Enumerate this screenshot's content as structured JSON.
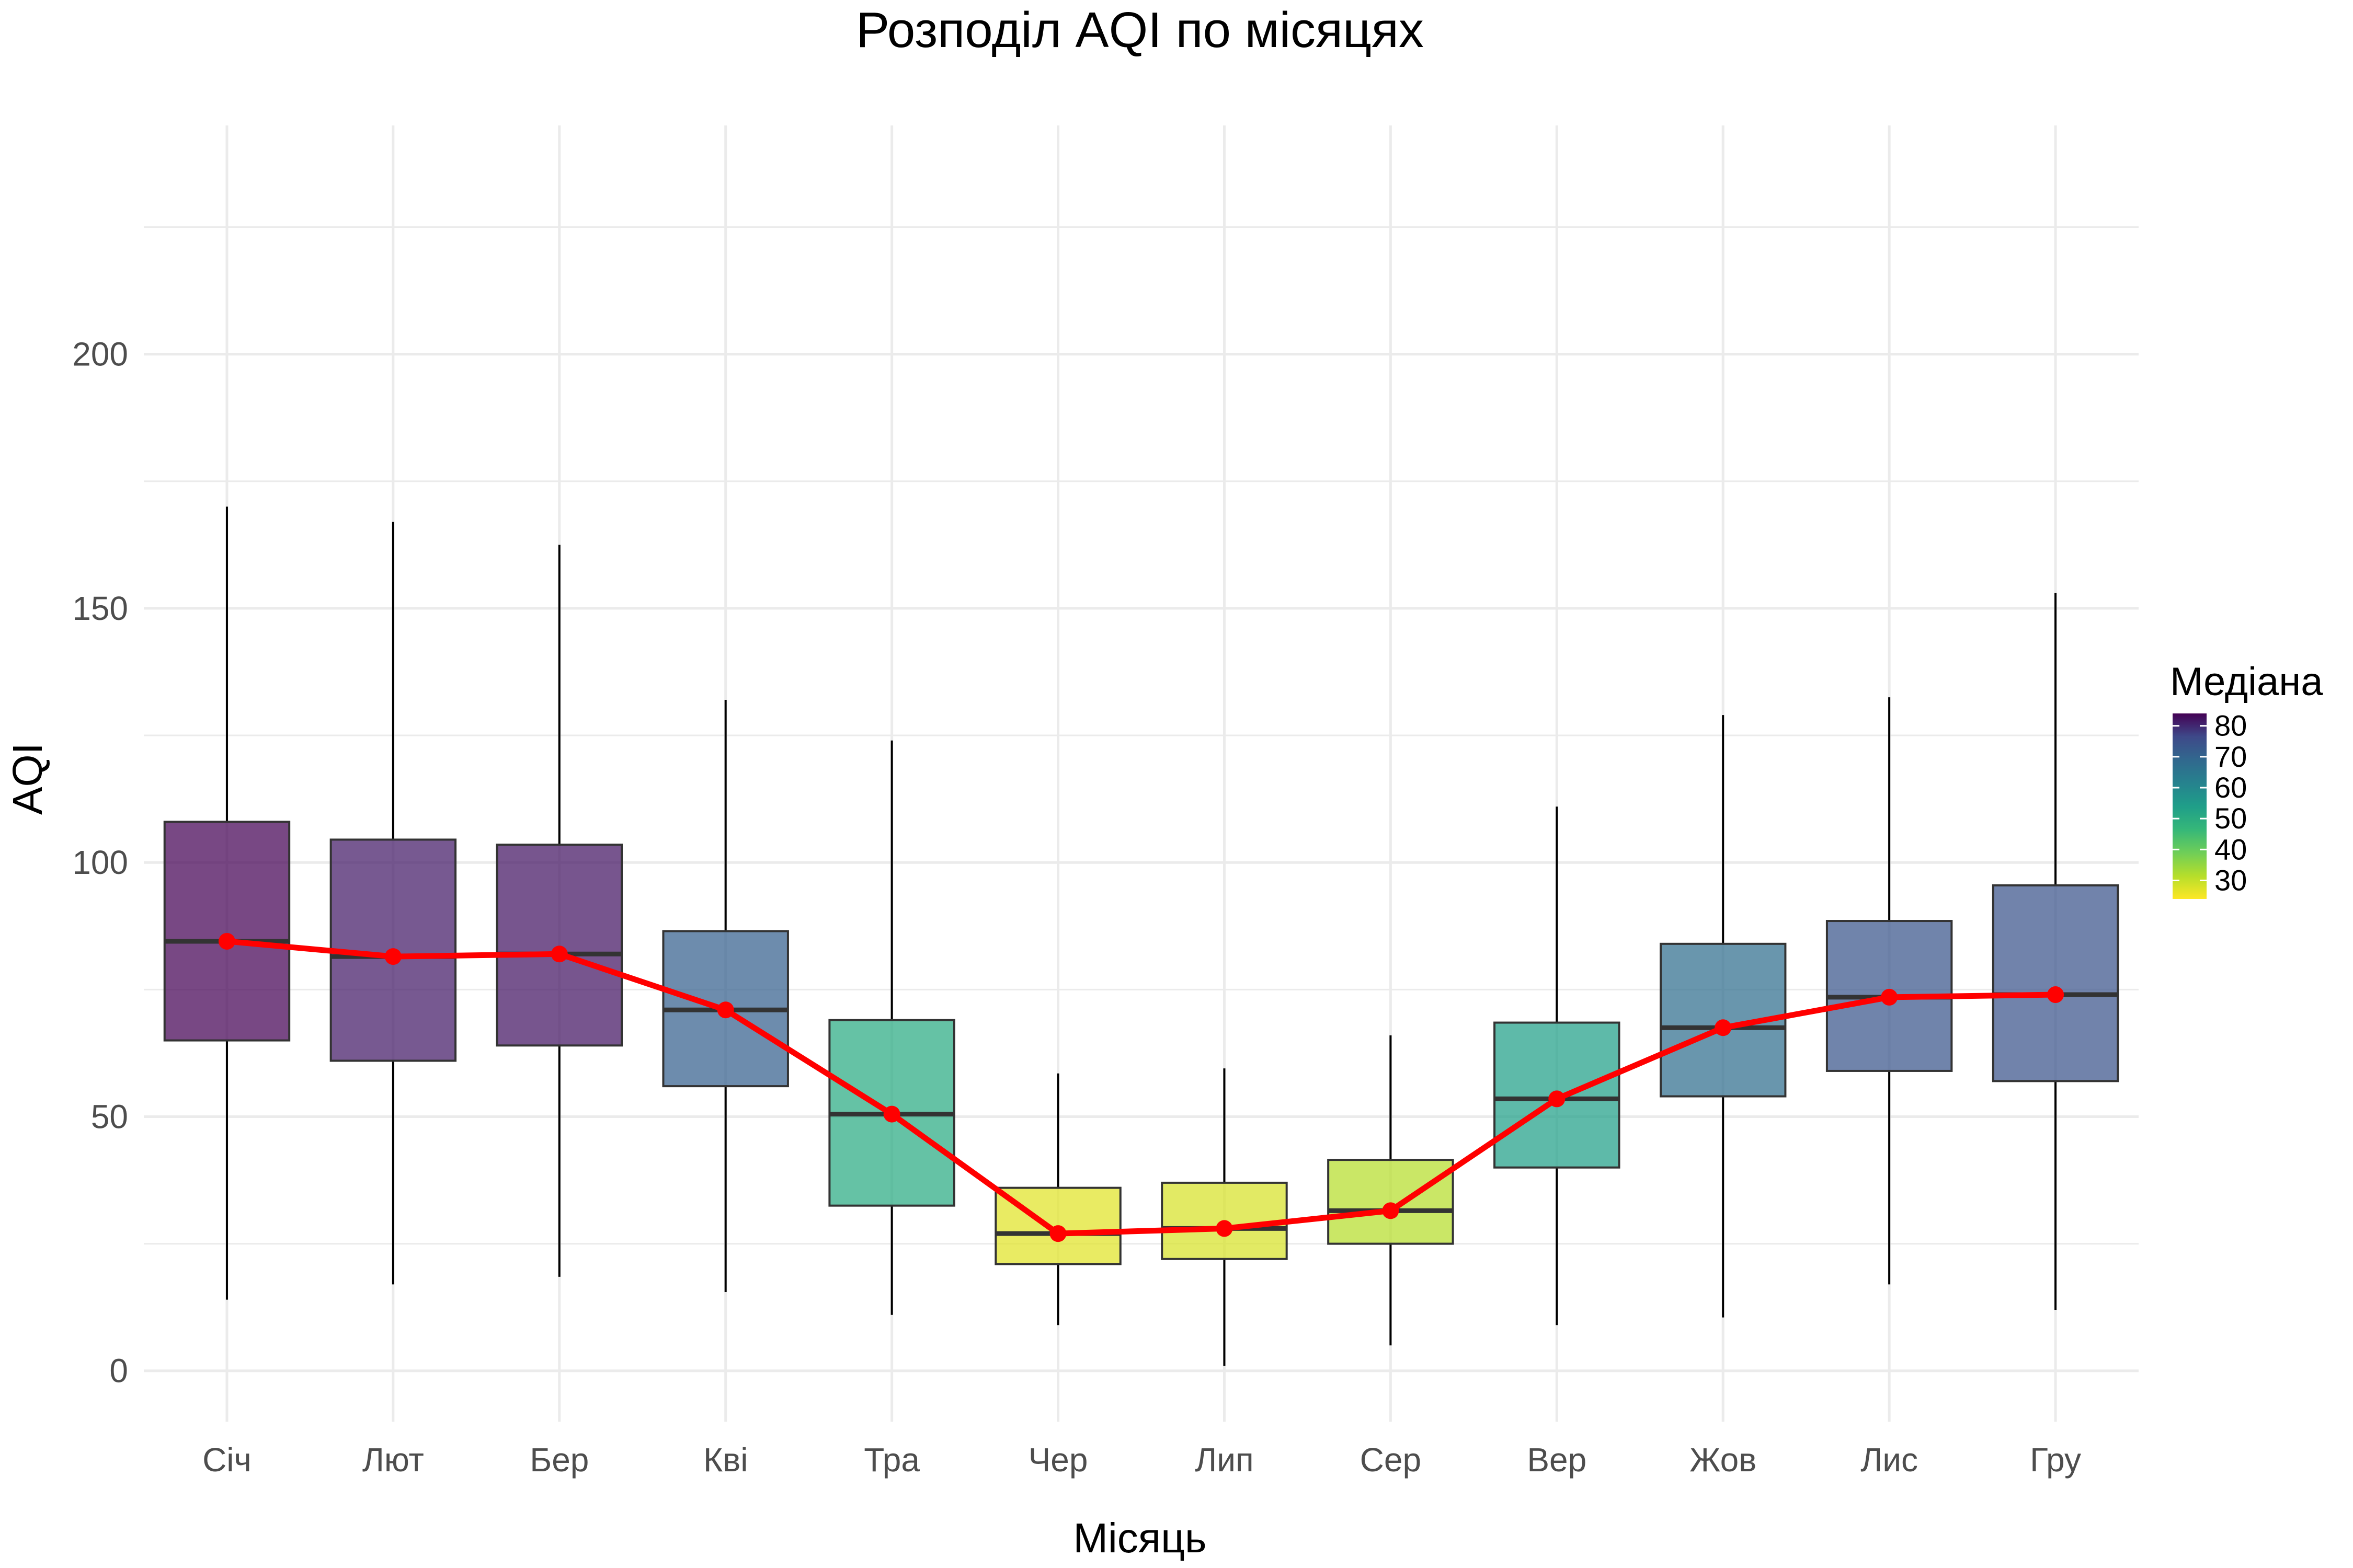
{
  "chart_data": {
    "type": "box",
    "title": "Розподіл AQI по місяцях",
    "xlabel": "Місяць",
    "ylabel": "AQI",
    "categories": [
      "Січ",
      "Лют",
      "Бер",
      "Кві",
      "Тра",
      "Чер",
      "Лип",
      "Сер",
      "Вер",
      "Жов",
      "Лис",
      "Гру"
    ],
    "ylim": [
      -10,
      245
    ],
    "yticks": [
      0,
      50,
      100,
      150,
      200
    ],
    "grid": true,
    "boxes": [
      {
        "whisker_low": 14,
        "q1": 65,
        "median": 84.5,
        "q3": 108,
        "whisker_high": 170
      },
      {
        "whisker_low": 17,
        "q1": 61,
        "median": 81.5,
        "q3": 104.5,
        "whisker_high": 167
      },
      {
        "whisker_low": 18.5,
        "q1": 64,
        "median": 82,
        "q3": 103.5,
        "whisker_high": 162.5
      },
      {
        "whisker_low": 15.5,
        "q1": 56,
        "median": 71,
        "q3": 86.5,
        "whisker_high": 132
      },
      {
        "whisker_low": 11,
        "q1": 32.5,
        "median": 50.5,
        "q3": 69,
        "whisker_high": 124
      },
      {
        "whisker_low": 9,
        "q1": 21,
        "median": 27,
        "q3": 36,
        "whisker_high": 58.5
      },
      {
        "whisker_low": 1,
        "q1": 22,
        "median": 28,
        "q3": 37,
        "whisker_high": 59.5
      },
      {
        "whisker_low": 5,
        "q1": 25,
        "median": 31.5,
        "q3": 41.5,
        "whisker_high": 66
      },
      {
        "whisker_low": 9,
        "q1": 40,
        "median": 53.5,
        "q3": 68.5,
        "whisker_high": 111
      },
      {
        "whisker_low": 10.5,
        "q1": 54,
        "median": 67.5,
        "q3": 84,
        "whisker_high": 129
      },
      {
        "whisker_low": 17,
        "q1": 59,
        "median": 73.5,
        "q3": 88.5,
        "whisker_high": 132.5
      },
      {
        "whisker_low": 12,
        "q1": 57,
        "median": 74,
        "q3": 95.5,
        "whisker_high": 153
      }
    ],
    "line_series": {
      "values": [
        84.5,
        81.5,
        82,
        71,
        50.5,
        27,
        28,
        31.5,
        53.5,
        67.5,
        73.5,
        74
      ],
      "color": "#ff0000"
    },
    "legend": {
      "title": "Медіана",
      "placement": "right",
      "range": [
        24,
        84
      ],
      "ticks": [
        30,
        40,
        50,
        60,
        70,
        80
      ]
    },
    "colors": {
      "colormap": "viridis",
      "box_stroke": "#333333",
      "median_line": "#333333",
      "grid": "#ebebeb"
    }
  }
}
